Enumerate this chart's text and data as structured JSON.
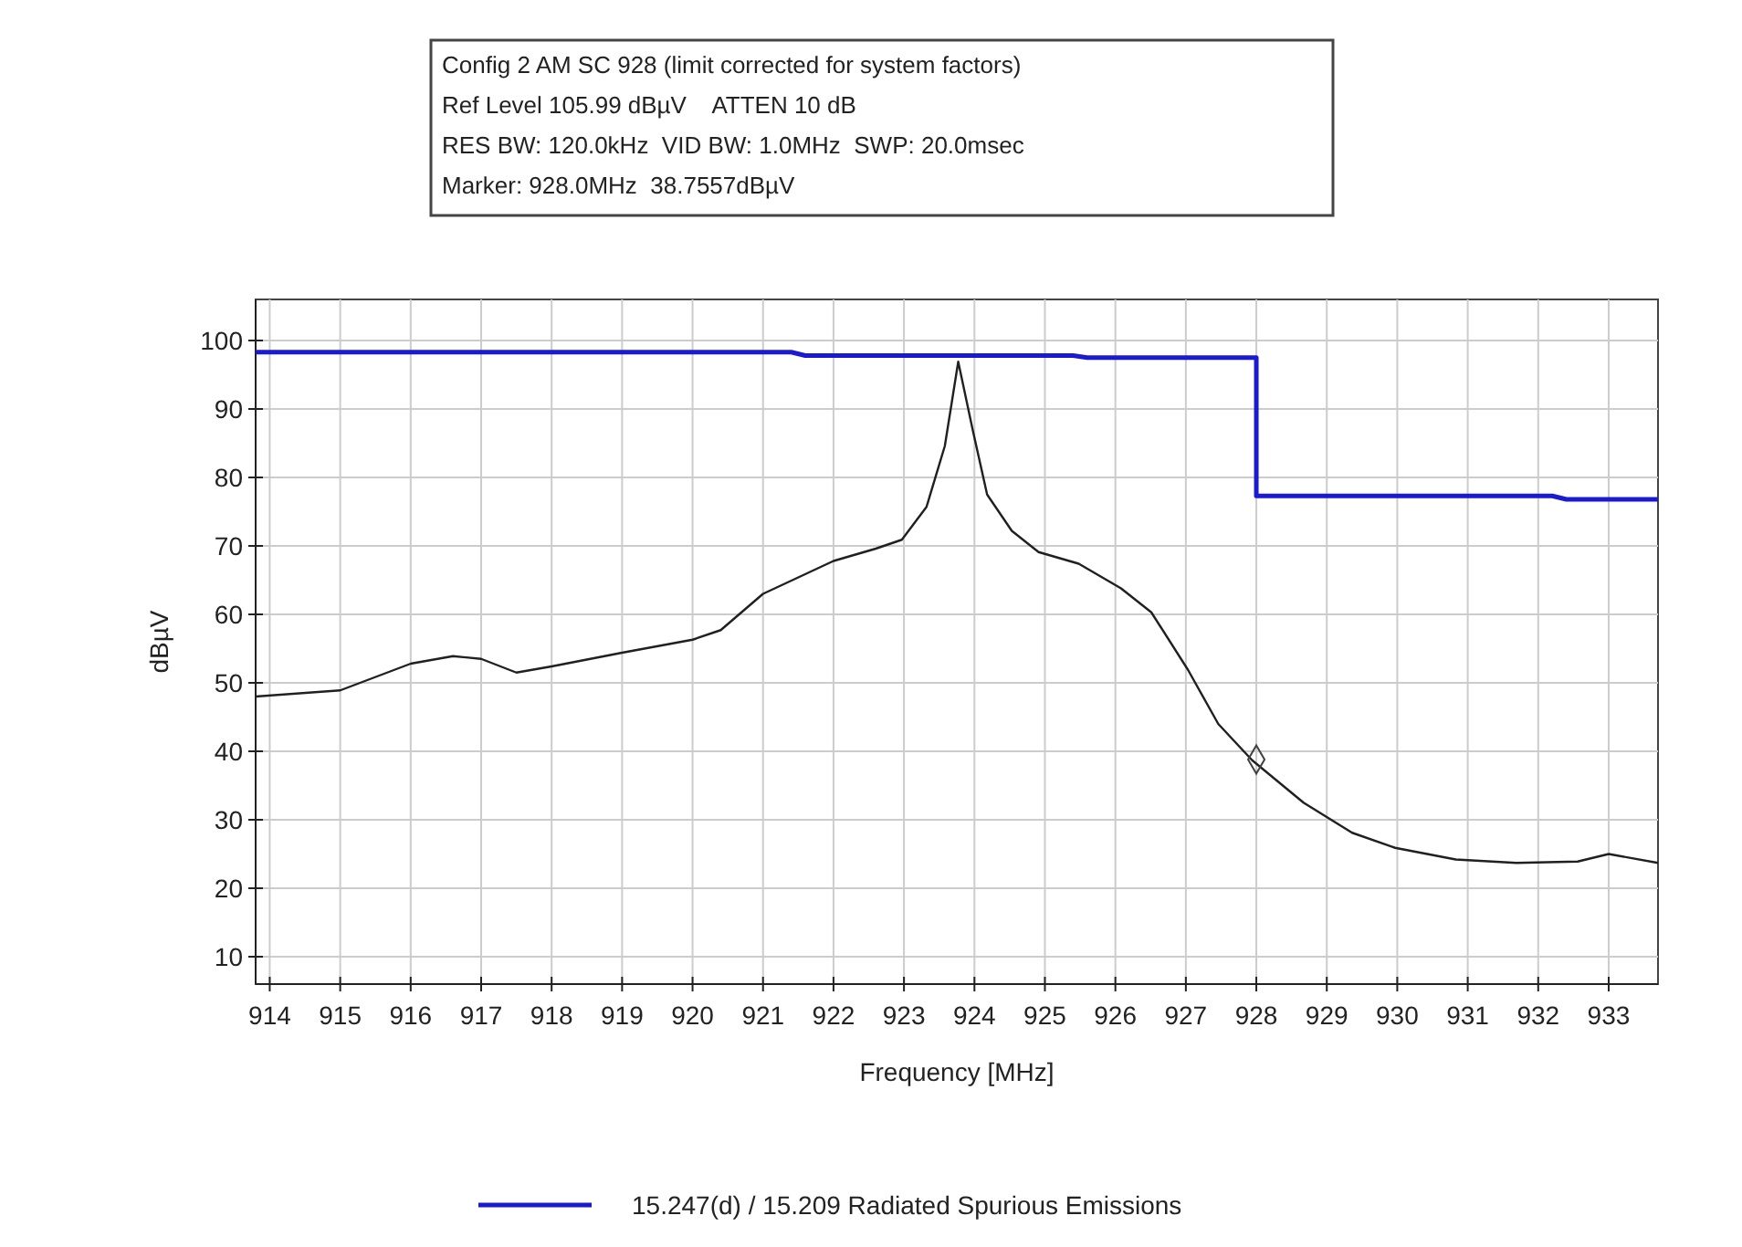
{
  "chart_data": {
    "type": "line",
    "title": "Config 2 AM SC 928 (limit corrected for system factors)",
    "annotations": [
      "Ref Level 105.99 dBµV    ATTEN 10 dB",
      "RES BW: 120.0kHz  VID BW: 1.0MHz  SWP: 20.0msec",
      "Marker: 928.0MHz  38.7557dBµV"
    ],
    "xlabel": "Frequency [MHz]",
    "ylabel": "dBµV",
    "xlim": [
      913.8,
      933.7
    ],
    "ylim": [
      6,
      106
    ],
    "xticks": [
      914,
      915,
      916,
      917,
      918,
      919,
      920,
      921,
      922,
      923,
      924,
      925,
      926,
      927,
      928,
      929,
      930,
      931,
      932,
      933
    ],
    "yticks": [
      10,
      20,
      30,
      40,
      50,
      60,
      70,
      80,
      90,
      100
    ],
    "grid": true,
    "legend": "bottom",
    "series": [
      {
        "name": "15.247(d) / 15.209 Radiated Spurious Emissions",
        "color": "#1a1ad0",
        "x": [
          913.8,
          921.4,
          921.6,
          925.4,
          925.6,
          928,
          928,
          932.2,
          932.4,
          933.7
        ],
        "values": [
          98.3,
          98.3,
          97.8,
          97.8,
          97.5,
          97.5,
          77.3,
          77.3,
          76.8,
          76.8
        ]
      },
      {
        "color": "#202020",
        "x": [
          913.8,
          915,
          916,
          916.6,
          917,
          917.5,
          918,
          919,
          920,
          920.4,
          921,
          922,
          922.6,
          922.97,
          923.32,
          923.58,
          923.77,
          923.97,
          924.18,
          924.53,
          924.91,
          925.48,
          926.08,
          926.51,
          927.03,
          927.46,
          927.94,
          928.67,
          929.36,
          929.97,
          930.83,
          931.69,
          932.56,
          933,
          933.7
        ],
        "values": [
          48,
          48.9,
          52.8,
          53.9,
          53.5,
          51.5,
          52.4,
          54.4,
          56.3,
          57.7,
          63,
          67.8,
          69.6,
          70.9,
          75.7,
          84.6,
          96.9,
          87.2,
          77.5,
          72.2,
          69.1,
          67.4,
          63.8,
          60.3,
          51.9,
          44,
          38.7,
          32.5,
          28.1,
          25.9,
          24.2,
          23.7,
          23.9,
          25,
          23.7
        ]
      },
      {
        "type": "scatter",
        "marker": "diamond",
        "color": "#404040",
        "x": [
          928
        ],
        "values": [
          38.8
        ]
      }
    ]
  }
}
